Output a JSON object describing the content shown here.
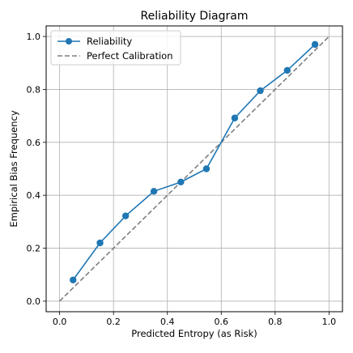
{
  "chart_data": {
    "type": "line",
    "title": "Reliability Diagram",
    "xlabel": "Predicted Entropy (as Risk)",
    "ylabel": "Empirical Bias Frequency",
    "xlim": [
      -0.05,
      1.05
    ],
    "ylim": [
      -0.04,
      1.04
    ],
    "xticks": [
      "0.0",
      "0.2",
      "0.4",
      "0.6",
      "0.8",
      "1.0"
    ],
    "yticks": [
      "0.0",
      "0.2",
      "0.4",
      "0.6",
      "0.8",
      "1.0"
    ],
    "grid": true,
    "legend_position": "top-left",
    "series": [
      {
        "name": "Reliability",
        "color": "#1f77b4",
        "style": "solid-markers",
        "x": [
          0.05,
          0.15,
          0.245,
          0.35,
          0.45,
          0.545,
          0.65,
          0.745,
          0.845,
          0.948
        ],
        "y": [
          0.08,
          0.22,
          0.322,
          0.415,
          0.45,
          0.5,
          0.692,
          0.795,
          0.872,
          0.97
        ]
      },
      {
        "name": "Perfect Calibration",
        "color": "#7f7f7f",
        "style": "dashed",
        "x": [
          0.0,
          1.0
        ],
        "y": [
          0.0,
          1.0
        ]
      }
    ]
  }
}
